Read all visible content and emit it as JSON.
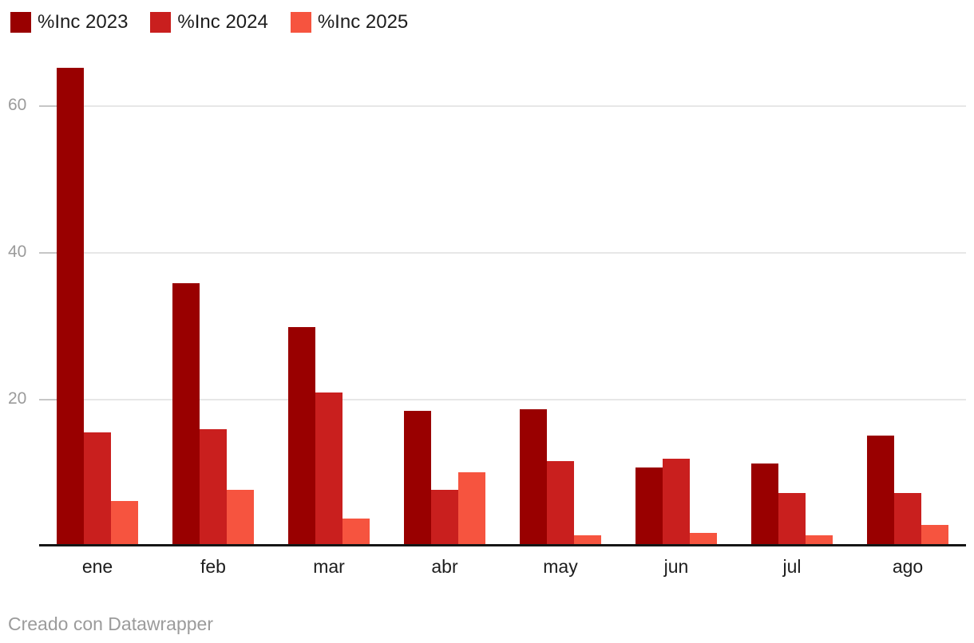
{
  "legend": {
    "items": [
      {
        "label": "%Inc 2023",
        "color": "#990000"
      },
      {
        "label": "%Inc 2024",
        "color": "#c91f1e"
      },
      {
        "label": "%Inc 2025",
        "color": "#f6543f"
      }
    ]
  },
  "chart_data": {
    "type": "bar",
    "grouped": true,
    "title": "",
    "xlabel": "",
    "ylabel": "",
    "categories": [
      "ene",
      "feb",
      "mar",
      "abr",
      "may",
      "jun",
      "jul",
      "ago"
    ],
    "series": [
      {
        "name": "%Inc 2023",
        "color": "#990000",
        "values": [
          65.2,
          35.9,
          29.9,
          18.5,
          18.7,
          10.8,
          11.3,
          15.1
        ]
      },
      {
        "name": "%Inc 2024",
        "color": "#c91f1e",
        "values": [
          15.5,
          16.0,
          21.0,
          7.7,
          11.6,
          12.0,
          7.3,
          7.3
        ]
      },
      {
        "name": "%Inc 2025",
        "color": "#f6543f",
        "values": [
          6.2,
          7.7,
          3.8,
          10.1,
          1.5,
          1.9,
          1.5,
          2.9
        ]
      }
    ],
    "ylim": [
      0,
      70
    ],
    "yticks": [
      20,
      40,
      60
    ],
    "grid": true,
    "legend_position": "top-left"
  },
  "footer": {
    "credit": "Creado con Datawrapper"
  },
  "colors": {
    "background": "#ffffff",
    "axis_line": "#161616",
    "gridline": "#e7e7e7",
    "tick": "#c6c6c6",
    "ytick_text": "#9b9b9b",
    "xtick_text": "#1d1d1d",
    "footer_text": "#9b9b9b"
  }
}
